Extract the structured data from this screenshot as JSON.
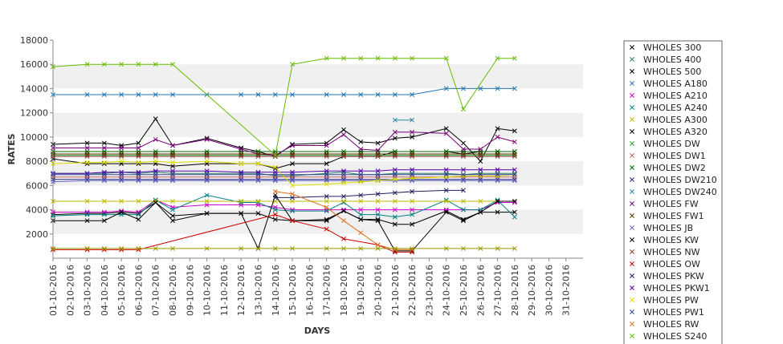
{
  "chart_data": {
    "type": "line",
    "title": "",
    "xlabel": "DAYS",
    "ylabel": "RATES",
    "ylim": [
      0,
      18000
    ],
    "y_ticks": [
      2000,
      4000,
      6000,
      8000,
      10000,
      12000,
      14000,
      16000,
      18000
    ],
    "grid": "alternating horizontal bands",
    "legend_position": "right",
    "categories": [
      "01-10-2016",
      "02-10-2016",
      "03-10-2016",
      "04-10-2016",
      "05-10-2016",
      "06-10-2016",
      "07-10-2016",
      "08-10-2016",
      "09-10-2016",
      "10-10-2016",
      "11-10-2016",
      "12-10-2016",
      "13-10-2016",
      "14-10-2016",
      "15-10-2016",
      "16-10-2016",
      "17-10-2016",
      "18-10-2016",
      "19-10-2016",
      "20-10-2016",
      "21-10-2016",
      "22-10-2016",
      "23-10-2016",
      "24-10-2016",
      "25-10-2016",
      "26-10-2016",
      "27-10-2016",
      "28-10-2016",
      "29-10-2016",
      "30-10-2016",
      "31-10-2016"
    ],
    "series": [
      {
        "name": "WHOLES 300",
        "color": "#000000",
        "values": [
          3600,
          null,
          3700,
          3700,
          3800,
          3700,
          4600,
          3500,
          null,
          3700,
          null,
          3700,
          3700,
          3200,
          3100,
          null,
          3200,
          3900,
          3200,
          3200,
          2800,
          2800,
          null,
          3900,
          3200,
          3800,
          3800,
          3800,
          null,
          null,
          null
        ]
      },
      {
        "name": "WHOLES 400",
        "color": "#2a7f62",
        "values": [
          7000,
          null,
          7000,
          7000,
          7100,
          7000,
          7100,
          7000,
          null,
          7000,
          null,
          7000,
          7000,
          6800,
          6800,
          null,
          7000,
          7100,
          6900,
          6900,
          7000,
          7000,
          null,
          7000,
          6900,
          7000,
          7000,
          7000,
          null,
          null,
          null
        ]
      },
      {
        "name": "WHOLES 500",
        "color": "#000000",
        "values": [
          8200,
          null,
          7800,
          7800,
          7800,
          7800,
          7800,
          7600,
          null,
          7800,
          null,
          7800,
          7800,
          7400,
          7800,
          null,
          7800,
          8400,
          8400,
          8400,
          8800,
          8800,
          null,
          8800,
          8600,
          8800,
          8800,
          8800,
          null,
          null,
          null
        ]
      },
      {
        "name": "WHOLES A180",
        "color": "#1f77b4",
        "values": [
          13500,
          null,
          13500,
          13500,
          13500,
          13500,
          13500,
          13500,
          null,
          13500,
          null,
          13500,
          13500,
          13500,
          13500,
          null,
          13500,
          13500,
          13500,
          13500,
          13500,
          13500,
          null,
          14000,
          14000,
          14000,
          14000,
          14000,
          null,
          null,
          null
        ]
      },
      {
        "name": "WHOLES A210",
        "color": "#cc00cc",
        "values": [
          3800,
          null,
          3800,
          3800,
          3900,
          3800,
          4800,
          4200,
          null,
          4400,
          null,
          4400,
          4400,
          4200,
          4000,
          null,
          4000,
          4000,
          4000,
          4000,
          4000,
          4000,
          null,
          4000,
          4000,
          4000,
          4600,
          4600,
          null,
          null,
          null
        ]
      },
      {
        "name": "WHOLES A240",
        "color": "#008080",
        "values": [
          3500,
          null,
          3600,
          3600,
          3600,
          3600,
          4800,
          4000,
          null,
          5200,
          null,
          4600,
          4600,
          4000,
          3900,
          null,
          3900,
          4600,
          3600,
          3600,
          3400,
          3600,
          null,
          4800,
          4000,
          4000,
          4800,
          3400,
          null,
          null,
          null
        ]
      },
      {
        "name": "WHOLES A300",
        "color": "#bbbb00",
        "values": [
          4700,
          null,
          4700,
          4700,
          4700,
          4700,
          4700,
          4700,
          null,
          4700,
          null,
          4700,
          4700,
          4700,
          4700,
          null,
          4700,
          4700,
          4700,
          4700,
          4700,
          4700,
          null,
          4700,
          4700,
          4700,
          4700,
          4700,
          null,
          null,
          null
        ]
      },
      {
        "name": "WHOLES A320",
        "color": "#000000",
        "values": [
          9400,
          null,
          9500,
          9500,
          9300,
          9500,
          11500,
          9300,
          null,
          9900,
          null,
          9100,
          8800,
          8400,
          9400,
          null,
          9500,
          10600,
          9600,
          9500,
          9900,
          10000,
          null,
          10700,
          9500,
          8000,
          10700,
          10500,
          null,
          null,
          null
        ]
      },
      {
        "name": "WHOLES DW",
        "color": "#2ca02c",
        "values": [
          8500,
          null,
          8500,
          8500,
          8500,
          8500,
          8500,
          8500,
          null,
          8500,
          null,
          8500,
          8500,
          8500,
          8500,
          null,
          8500,
          8500,
          8500,
          8500,
          8500,
          8500,
          null,
          8500,
          8500,
          8500,
          8500,
          8500,
          null,
          null,
          null
        ]
      },
      {
        "name": "WHOLES DW1",
        "color": "#c06060",
        "values": [
          6700,
          null,
          6700,
          6700,
          6700,
          6700,
          6700,
          6700,
          null,
          6700,
          null,
          6700,
          6700,
          6700,
          6700,
          null,
          6700,
          6700,
          6700,
          6700,
          6700,
          6700,
          null,
          6700,
          6700,
          6700,
          6700,
          6700,
          null,
          null,
          null
        ]
      },
      {
        "name": "WHOLES DW2",
        "color": "#006600",
        "values": [
          8800,
          null,
          8800,
          8800,
          8800,
          8800,
          8800,
          8800,
          null,
          8800,
          null,
          8800,
          8800,
          8800,
          8800,
          null,
          8800,
          8800,
          8800,
          8800,
          8800,
          8800,
          null,
          8800,
          8800,
          8800,
          8800,
          8800,
          null,
          null,
          null
        ]
      },
      {
        "name": "WHOLES DW210",
        "color": "#2b2b80",
        "values": [
          6500,
          null,
          6500,
          6500,
          6500,
          6500,
          6500,
          6500,
          null,
          6500,
          null,
          6500,
          6500,
          6500,
          6500,
          null,
          6500,
          6500,
          6500,
          6500,
          6500,
          6500,
          null,
          6500,
          6500,
          6500,
          6500,
          6500,
          null,
          null,
          null
        ]
      },
      {
        "name": "WHOLES DW240",
        "color": "#2a8aa0",
        "values": [
          null,
          null,
          null,
          null,
          null,
          null,
          null,
          null,
          null,
          null,
          null,
          null,
          null,
          null,
          null,
          null,
          null,
          null,
          null,
          null,
          11400,
          11400,
          null,
          null,
          null,
          null,
          null,
          null,
          null,
          null,
          null
        ]
      },
      {
        "name": "WHOLES FW",
        "color": "#7a007a",
        "values": [
          9100,
          null,
          9100,
          9100,
          9100,
          9100,
          9800,
          9300,
          null,
          9800,
          null,
          9000,
          8600,
          8500,
          9300,
          null,
          9300,
          10200,
          9000,
          8900,
          10400,
          10400,
          null,
          10300,
          9000,
          9000,
          10000,
          9600,
          null,
          null,
          null
        ]
      },
      {
        "name": "WHOLES FW1",
        "color": "#5a3000",
        "values": [
          8600,
          null,
          8600,
          8600,
          8600,
          8600,
          8600,
          8600,
          null,
          8600,
          null,
          8600,
          8600,
          8600,
          8600,
          null,
          8600,
          8600,
          8600,
          8600,
          8600,
          8600,
          null,
          8600,
          8600,
          8600,
          8600,
          8600,
          null,
          null,
          null
        ]
      },
      {
        "name": "WHOLES JB",
        "color": "#6666cc",
        "values": [
          6300,
          null,
          6400,
          6400,
          6400,
          6400,
          6400,
          6400,
          null,
          6400,
          null,
          6400,
          6400,
          6400,
          6400,
          null,
          6400,
          6400,
          6400,
          6400,
          6400,
          6400,
          null,
          6400,
          6400,
          6400,
          6400,
          6400,
          null,
          null,
          null
        ]
      },
      {
        "name": "WHOLES KW",
        "color": "#000000",
        "values": [
          3100,
          null,
          3100,
          3100,
          3800,
          3200,
          4600,
          3100,
          null,
          3700,
          null,
          3700,
          800,
          5200,
          3100,
          null,
          3100,
          3900,
          3200,
          3100,
          600,
          600,
          null,
          3800,
          3100,
          3800,
          4700,
          4700,
          null,
          null,
          null
        ]
      },
      {
        "name": "WHOLES NW",
        "color": "#8b3a3a",
        "values": [
          8400,
          null,
          8400,
          8400,
          8400,
          8400,
          8400,
          8400,
          null,
          8400,
          null,
          8400,
          8400,
          8400,
          8400,
          null,
          8400,
          8400,
          8400,
          8400,
          8400,
          8400,
          null,
          8400,
          8400,
          8400,
          8400,
          8400,
          null,
          null,
          null
        ]
      },
      {
        "name": "WHOLES OW",
        "color": "#cc0000",
        "values": [
          700,
          null,
          700,
          700,
          700,
          700,
          null,
          null,
          null,
          null,
          null,
          null,
          null,
          3600,
          3100,
          null,
          2400,
          1600,
          null,
          1100,
          500,
          500,
          null,
          null,
          null,
          null,
          null,
          null,
          null,
          null,
          null
        ]
      },
      {
        "name": "WHOLES PKW",
        "color": "#202060",
        "values": [
          null,
          null,
          null,
          null,
          null,
          null,
          null,
          null,
          null,
          null,
          null,
          null,
          null,
          5000,
          5000,
          null,
          5100,
          5100,
          5200,
          5300,
          5400,
          5500,
          null,
          5600,
          5600,
          null,
          null,
          null,
          null,
          null,
          null
        ]
      },
      {
        "name": "WHOLES PKW1",
        "color": "#5500aa",
        "values": [
          7000,
          null,
          7000,
          7100,
          7100,
          7100,
          7200,
          7200,
          null,
          7200,
          null,
          7100,
          7100,
          7100,
          7100,
          null,
          7200,
          7200,
          7200,
          7200,
          7300,
          7300,
          null,
          7300,
          7300,
          7300,
          7300,
          7300,
          null,
          null,
          null
        ]
      },
      {
        "name": "WHOLES PW",
        "color": "#dddd00",
        "values": [
          7800,
          null,
          7900,
          7900,
          8000,
          7900,
          8000,
          7900,
          null,
          8000,
          null,
          7800,
          7800,
          7500,
          6000,
          null,
          6100,
          6200,
          6300,
          6400,
          6500,
          6600,
          null,
          6700,
          6800,
          6800,
          6800,
          6900,
          null,
          null,
          null
        ]
      },
      {
        "name": "WHOLES PW1",
        "color": "#334499",
        "values": [
          6900,
          null,
          6900,
          6900,
          6900,
          6900,
          6900,
          6900,
          null,
          6900,
          null,
          6900,
          6900,
          6900,
          6900,
          null,
          6900,
          6900,
          6900,
          6900,
          6900,
          6900,
          null,
          6900,
          6900,
          6900,
          6900,
          6900,
          null,
          null,
          null
        ]
      },
      {
        "name": "WHOLES RW",
        "color": "#e07020",
        "values": [
          null,
          null,
          null,
          null,
          null,
          null,
          null,
          null,
          null,
          null,
          null,
          null,
          null,
          5500,
          5300,
          null,
          4200,
          3100,
          2100,
          1100,
          700,
          700,
          null,
          null,
          null,
          null,
          null,
          null,
          null,
          null,
          null
        ]
      },
      {
        "name": "WHOLES S240",
        "color": "#66bb00",
        "values": [
          15800,
          null,
          16000,
          16000,
          16000,
          16000,
          16000,
          16000,
          null,
          null,
          null,
          null,
          null,
          8500,
          16000,
          null,
          16500,
          16500,
          16500,
          16500,
          16500,
          16500,
          null,
          16500,
          12300,
          null,
          16500,
          16500,
          null,
          null,
          null
        ]
      },
      {
        "name": "",
        "color": "#999900",
        "values": [
          800,
          null,
          800,
          800,
          800,
          800,
          800,
          800,
          null,
          800,
          null,
          800,
          800,
          800,
          800,
          null,
          800,
          800,
          800,
          800,
          800,
          800,
          null,
          800,
          800,
          800,
          800,
          800,
          null,
          null,
          null
        ]
      }
    ]
  }
}
